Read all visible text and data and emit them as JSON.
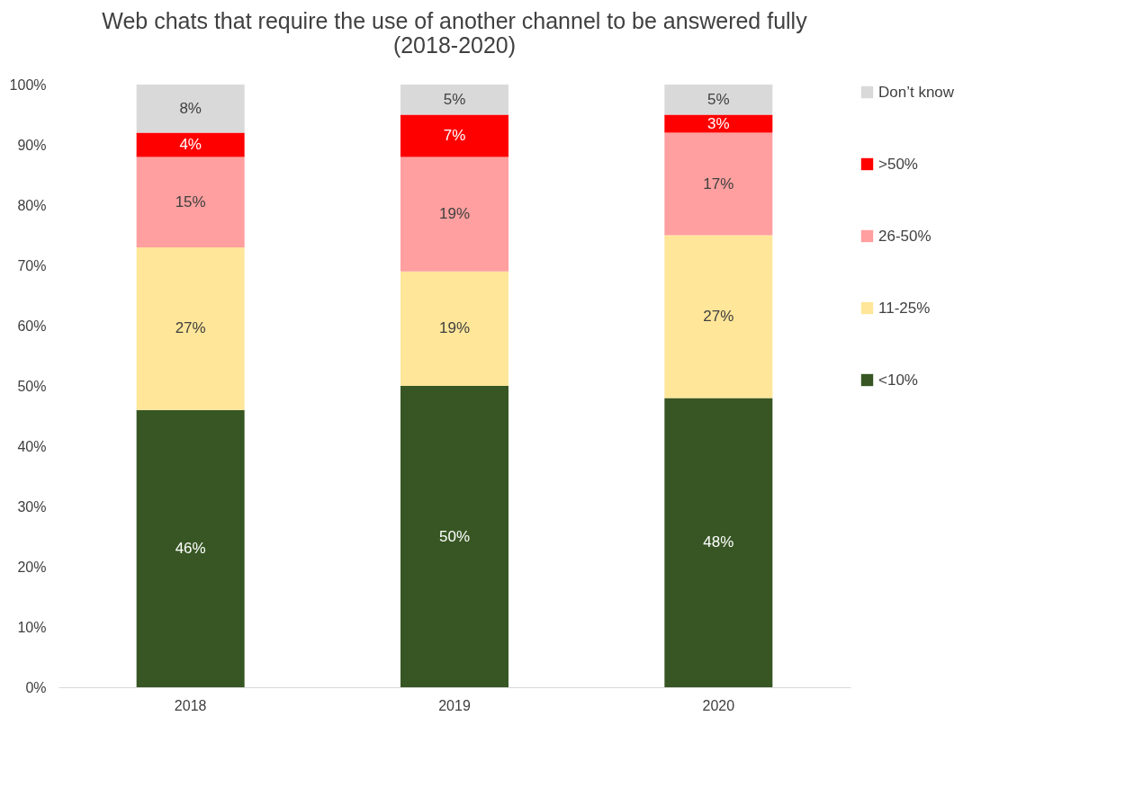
{
  "chart_data": {
    "type": "bar",
    "stacked": true,
    "title": [
      "Web chats that require the use of another channel to be answered fully",
      "(2018-2020)"
    ],
    "categories": [
      "2018",
      "2019",
      "2020"
    ],
    "series": [
      {
        "name": "<10%",
        "color": "#375623",
        "values": [
          46,
          50,
          48
        ],
        "value_labels": [
          "46%",
          "50%",
          "48%"
        ]
      },
      {
        "name": "11-25%",
        "color": "#ffe699",
        "values": [
          27,
          19,
          27
        ],
        "value_labels": [
          "27%",
          "19%",
          "27%"
        ]
      },
      {
        "name": "26-50%",
        "color": "#ff9f9f",
        "values": [
          15,
          19,
          17
        ],
        "value_labels": [
          "15%",
          "19%",
          "17%"
        ]
      },
      {
        "name": ">50%",
        "color": "#ff0000",
        "values": [
          4,
          7,
          3
        ],
        "value_labels": [
          "4%",
          "7%",
          "3%"
        ]
      },
      {
        "name": "Don’t know",
        "color": "#d9d9d9",
        "values": [
          8,
          5,
          5
        ],
        "value_labels": [
          "8%",
          "5%",
          "5%"
        ]
      }
    ],
    "ylim": [
      0,
      100
    ],
    "yticks": [
      {
        "value": 0,
        "label": "0%"
      },
      {
        "value": 10,
        "label": "10%"
      },
      {
        "value": 20,
        "label": "20%"
      },
      {
        "value": 30,
        "label": "30%"
      },
      {
        "value": 40,
        "label": "40%"
      },
      {
        "value": 50,
        "label": "50%"
      },
      {
        "value": 60,
        "label": "60%"
      },
      {
        "value": 70,
        "label": "70%"
      },
      {
        "value": 80,
        "label": "80%"
      },
      {
        "value": 90,
        "label": "90%"
      },
      {
        "value": 100,
        "label": "100%"
      }
    ],
    "grid": false,
    "legend": "right"
  }
}
